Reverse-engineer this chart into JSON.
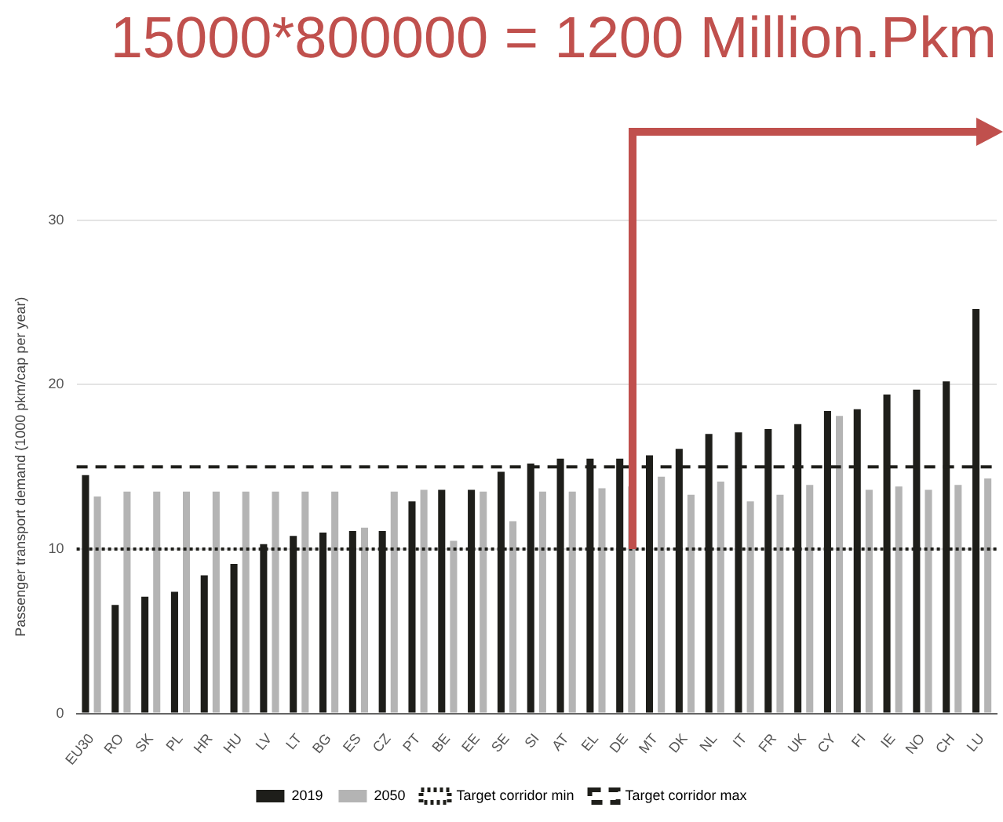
{
  "chart_data": {
    "type": "bar",
    "title": "15000*800000 = 1200 Million.Pkm",
    "ylabel": "Passenger transport demand (1000 pkm/cap per year)",
    "categories": [
      "EU30",
      "RO",
      "SK",
      "PL",
      "HR",
      "HU",
      "LV",
      "LT",
      "BG",
      "ES",
      "CZ",
      "PT",
      "BE",
      "EE",
      "SE",
      "SI",
      "AT",
      "EL",
      "DE",
      "MT",
      "DK",
      "NL",
      "IT",
      "FR",
      "UK",
      "CY",
      "FI",
      "IE",
      "NO",
      "CH",
      "LU"
    ],
    "series": [
      {
        "name": "2019",
        "color": "#1e1e1a",
        "values": [
          14.5,
          6.6,
          7.1,
          7.4,
          8.4,
          9.1,
          10.3,
          10.8,
          11.0,
          11.1,
          11.1,
          12.9,
          13.6,
          13.6,
          14.7,
          15.2,
          15.5,
          15.5,
          15.5,
          15.7,
          16.1,
          17.0,
          17.1,
          17.3,
          17.6,
          18.4,
          18.5,
          19.4,
          19.7,
          20.2,
          24.6
        ]
      },
      {
        "name": "2050",
        "color": "#b4b4b4",
        "values": [
          13.2,
          13.5,
          13.5,
          13.5,
          13.5,
          13.5,
          13.5,
          13.5,
          13.5,
          11.3,
          13.5,
          13.6,
          10.5,
          13.5,
          11.7,
          13.5,
          13.5,
          13.7,
          13.8,
          14.4,
          13.3,
          14.1,
          12.9,
          13.3,
          13.9,
          18.1,
          13.6,
          13.8,
          13.6,
          13.9,
          14.3
        ]
      }
    ],
    "ylim": [
      0,
      30
    ],
    "yticks": [
      0,
      10,
      20,
      30
    ],
    "grid": "y",
    "legend": "bottom",
    "ref_lines": [
      {
        "axis": "y",
        "value": 10,
        "label": "Target corridor min",
        "color": "#1e1e1a",
        "line_style": "dotted"
      },
      {
        "axis": "y",
        "value": 15,
        "label": "Target corridor max",
        "color": "#1e1e1a",
        "line_style": "dashed"
      }
    ]
  }
}
